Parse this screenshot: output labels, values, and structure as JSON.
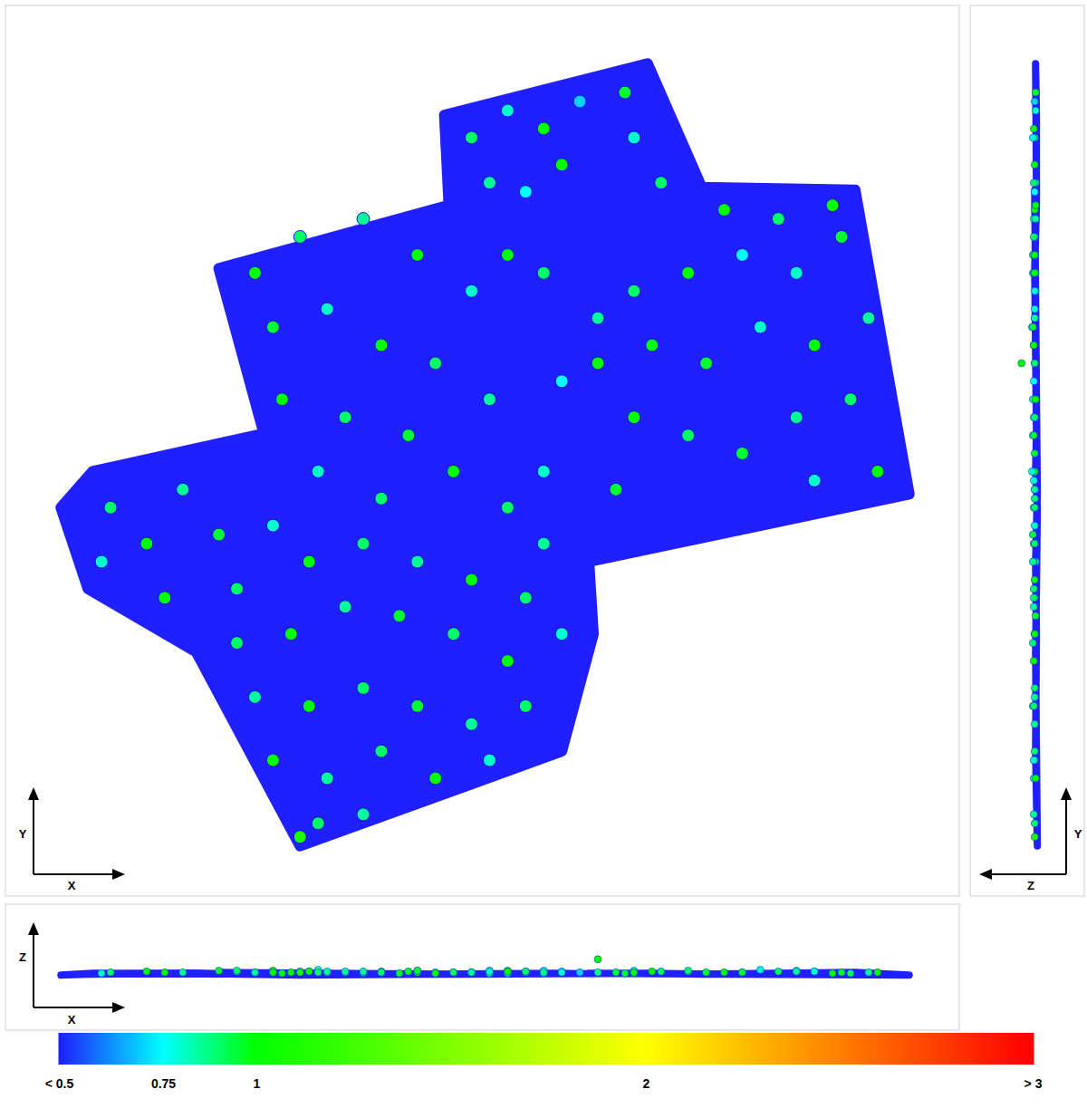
{
  "chart_data": {
    "type": "scatter",
    "tick_labels": false,
    "views": [
      {
        "axis_labels": [
          "X",
          "Y"
        ],
        "xlim": [
          5,
          1060
        ],
        "ylim": [
          10,
          995
        ]
      },
      {
        "axis_labels": [
          "Z",
          "Y"
        ],
        "zlim": [
          -53,
          75
        ],
        "ylim": [
          10,
          995
        ]
      },
      {
        "axis_labels": [
          "X",
          "Z"
        ],
        "xlim": [
          5,
          1060
        ],
        "zlim": [
          -62,
          79
        ]
      }
    ],
    "footprint": [
      [
        490,
        875,
        1
      ],
      [
        715,
        932,
        2
      ],
      [
        775,
        795,
        1
      ],
      [
        945,
        792,
        3
      ],
      [
        1005,
        455,
        0
      ],
      [
        650,
        380,
        2
      ],
      [
        655,
        300,
        1
      ],
      [
        620,
        170,
        2
      ],
      [
        330,
        65,
        0
      ],
      [
        215,
        280,
        2
      ],
      [
        95,
        350,
        1
      ],
      [
        65,
        440,
        0
      ],
      [
        100,
        480,
        2
      ],
      [
        290,
        522,
        1
      ],
      [
        240,
        705,
        3
      ],
      [
        495,
        775,
        1
      ],
      [
        490,
        875,
        1
      ]
    ],
    "points": [
      [
        520,
        850,
        3,
        0.9
      ],
      [
        560,
        880,
        2,
        0.8
      ],
      [
        600,
        860,
        4,
        1.0
      ],
      [
        640,
        890,
        3,
        0.7
      ],
      [
        690,
        900,
        2,
        0.95
      ],
      [
        700,
        850,
        5,
        0.8
      ],
      [
        620,
        820,
        3,
        1.0
      ],
      [
        540,
        800,
        2,
        0.85
      ],
      [
        730,
        800,
        4,
        0.9
      ],
      [
        580,
        790,
        3,
        0.75
      ],
      [
        800,
        770,
        3,
        1.0
      ],
      [
        860,
        760,
        4,
        0.9
      ],
      [
        920,
        775,
        2,
        1.0
      ],
      [
        930,
        740,
        3,
        0.95
      ],
      [
        880,
        700,
        5,
        0.8
      ],
      [
        820,
        720,
        3,
        0.75
      ],
      [
        760,
        700,
        4,
        1.0
      ],
      [
        700,
        680,
        2,
        0.9
      ],
      [
        960,
        650,
        3,
        0.85
      ],
      [
        900,
        620,
        4,
        1.0
      ],
      [
        840,
        640,
        6,
        0.8
      ],
      [
        780,
        600,
        3,
        0.95
      ],
      [
        720,
        620,
        4,
        1.0
      ],
      [
        660,
        650,
        3,
        0.85
      ],
      [
        600,
        700,
        2,
        0.9
      ],
      [
        560,
        720,
        5,
        1.0
      ],
      [
        520,
        680,
        3,
        0.8
      ],
      [
        620,
        580,
        4,
        0.75
      ],
      [
        700,
        540,
        3,
        1.0
      ],
      [
        760,
        520,
        5,
        0.9
      ],
      [
        820,
        500,
        3,
        0.95
      ],
      [
        880,
        540,
        4,
        0.85
      ],
      [
        940,
        560,
        2,
        0.9
      ],
      [
        970,
        480,
        3,
        1.0
      ],
      [
        900,
        470,
        4,
        0.8
      ],
      [
        680,
        460,
        3,
        0.95
      ],
      [
        600,
        480,
        5,
        0.8
      ],
      [
        280,
        700,
        3,
        1.0
      ],
      [
        330,
        740,
        4,
        0.9
      ],
      [
        400,
        760,
        2,
        0.85
      ],
      [
        460,
        720,
        3,
        1.0
      ],
      [
        300,
        640,
        5,
        0.95
      ],
      [
        360,
        660,
        3,
        0.8
      ],
      [
        420,
        620,
        4,
        1.0
      ],
      [
        480,
        600,
        3,
        0.9
      ],
      [
        540,
        560,
        5,
        0.85
      ],
      [
        310,
        560,
        2,
        1.0
      ],
      [
        380,
        540,
        3,
        0.9
      ],
      [
        450,
        520,
        4,
        0.95
      ],
      [
        500,
        480,
        3,
        1.0
      ],
      [
        560,
        440,
        4,
        0.9
      ],
      [
        600,
        400,
        3,
        0.85
      ],
      [
        350,
        480,
        6,
        0.8
      ],
      [
        420,
        450,
        3,
        0.9
      ],
      [
        120,
        440,
        3,
        0.9
      ],
      [
        160,
        400,
        4,
        1.0
      ],
      [
        110,
        380,
        2,
        0.8
      ],
      [
        200,
        460,
        3,
        0.85
      ],
      [
        240,
        410,
        5,
        0.95
      ],
      [
        180,
        340,
        3,
        1.0
      ],
      [
        260,
        350,
        4,
        0.9
      ],
      [
        300,
        420,
        3,
        0.8
      ],
      [
        340,
        380,
        4,
        1.0
      ],
      [
        400,
        400,
        3,
        0.9
      ],
      [
        460,
        380,
        5,
        0.85
      ],
      [
        520,
        360,
        3,
        1.0
      ],
      [
        580,
        340,
        4,
        0.9
      ],
      [
        620,
        300,
        3,
        0.8
      ],
      [
        560,
        270,
        4,
        1.0
      ],
      [
        500,
        300,
        3,
        0.9
      ],
      [
        440,
        320,
        2,
        0.95
      ],
      [
        380,
        330,
        4,
        0.85
      ],
      [
        320,
        300,
        3,
        1.0
      ],
      [
        260,
        290,
        5,
        0.9
      ],
      [
        280,
        230,
        3,
        0.85
      ],
      [
        340,
        220,
        4,
        1.0
      ],
      [
        400,
        240,
        3,
        0.9
      ],
      [
        460,
        220,
        5,
        0.95
      ],
      [
        520,
        200,
        3,
        0.85
      ],
      [
        580,
        220,
        4,
        0.9
      ],
      [
        300,
        160,
        3,
        1.0
      ],
      [
        360,
        140,
        4,
        0.85
      ],
      [
        420,
        170,
        3,
        0.9
      ],
      [
        480,
        140,
        2,
        1.0
      ],
      [
        540,
        160,
        4,
        0.8
      ],
      [
        350,
        90,
        3,
        0.9
      ],
      [
        400,
        100,
        4,
        0.85
      ],
      [
        330,
        75,
        3,
        1.1
      ],
      [
        660,
        600,
        18,
        1.0
      ]
    ],
    "colorbar": {
      "range": [
        0.5,
        3
      ],
      "ticks": [
        {
          "value": 0.5,
          "label": "< 0.5"
        },
        0.75,
        1,
        2,
        {
          "value": 3,
          "label": "> 3"
        }
      ],
      "colors": [
        "#1f1fff",
        "#00ffff",
        "#00ff00",
        "#ffff00",
        "#ff0000"
      ]
    }
  }
}
